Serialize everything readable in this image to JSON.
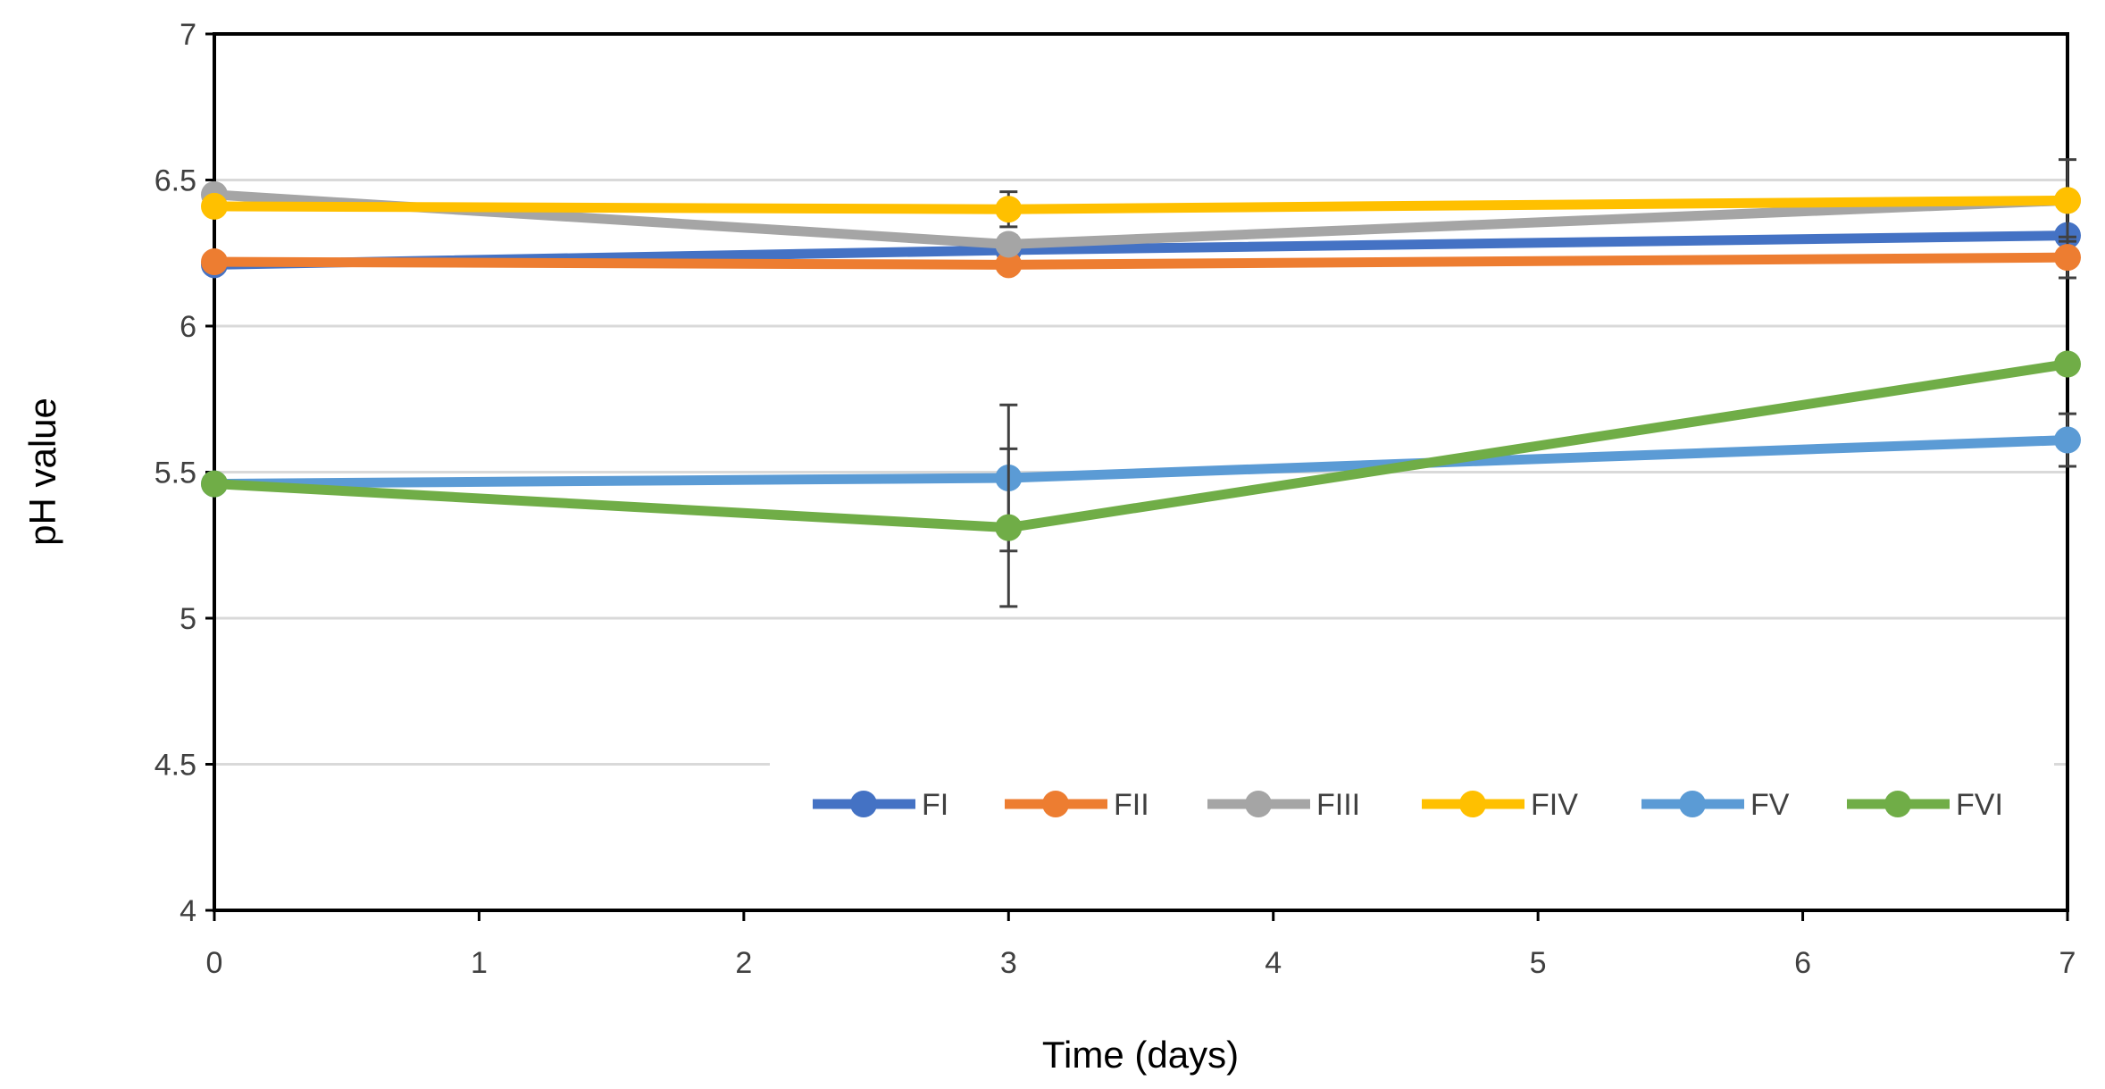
{
  "chart_data": {
    "type": "line",
    "title": "",
    "xlabel": "Time (days)",
    "ylabel": "pH value",
    "xlim": [
      0,
      7
    ],
    "ylim": [
      4,
      7
    ],
    "xticks": [
      "0",
      "1",
      "2",
      "3",
      "4",
      "5",
      "6",
      "7"
    ],
    "yticks": [
      "4",
      "4.5",
      "5",
      "5.5",
      "6",
      "6.5",
      "7"
    ],
    "grid": "horizontal",
    "legend_position": "bottom-right inside",
    "x": [
      0,
      3,
      7
    ],
    "series": [
      {
        "name": "FI",
        "color": "#4472C4",
        "values": [
          6.21,
          6.26,
          6.31
        ],
        "errors": [
          0.02,
          0.02,
          0.03
        ]
      },
      {
        "name": "FII",
        "color": "#ED7D31",
        "values": [
          6.22,
          6.21,
          6.235
        ],
        "errors": [
          0.02,
          0.02,
          0.07
        ]
      },
      {
        "name": "FIII",
        "color": "#A5A5A5",
        "values": [
          6.45,
          6.28,
          6.43
        ],
        "errors": [
          0.03,
          0.03,
          0.14
        ]
      },
      {
        "name": "FIV",
        "color": "#FFC000",
        "values": [
          6.41,
          6.4,
          6.43
        ],
        "errors": [
          0.02,
          0.06,
          0.02
        ]
      },
      {
        "name": "FV",
        "color": "#5B9BD5",
        "values": [
          5.46,
          5.48,
          5.61
        ],
        "errors": [
          0.01,
          0.25,
          0.09
        ]
      },
      {
        "name": "FVI",
        "color": "#70AD47",
        "values": [
          5.46,
          5.31,
          5.87
        ],
        "errors": [
          0.01,
          0.27,
          0.02
        ]
      }
    ]
  }
}
